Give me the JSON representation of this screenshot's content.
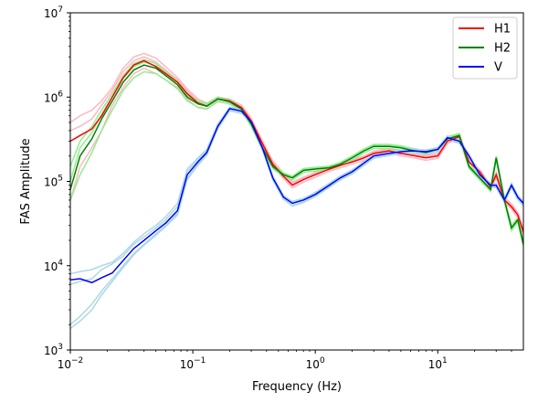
{
  "chart_data": {
    "type": "line",
    "title": "",
    "xlabel": "Frequency (Hz)",
    "ylabel": "FAS Amplitude",
    "xscale": "log",
    "yscale": "log",
    "xlim": [
      0.01,
      50
    ],
    "ylim": [
      1000,
      10000000
    ],
    "x_ticks": [
      0.01,
      0.1,
      1,
      10
    ],
    "x_tick_labels": [
      {
        "base": "10",
        "exp": "−2"
      },
      {
        "base": "10",
        "exp": "−1"
      },
      {
        "base": "10",
        "exp": "0"
      },
      {
        "base": "10",
        "exp": "1"
      }
    ],
    "y_ticks": [
      1000,
      10000,
      100000,
      1000000,
      10000000
    ],
    "y_tick_labels": [
      {
        "base": "10",
        "exp": "3"
      },
      {
        "base": "10",
        "exp": "4"
      },
      {
        "base": "10",
        "exp": "5"
      },
      {
        "base": "10",
        "exp": "6"
      },
      {
        "base": "10",
        "exp": "7"
      }
    ],
    "grid": false,
    "legend_position": "top-right",
    "x": [
      0.01,
      0.012,
      0.015,
      0.018,
      0.022,
      0.027,
      0.033,
      0.04,
      0.05,
      0.06,
      0.075,
      0.09,
      0.11,
      0.13,
      0.16,
      0.2,
      0.25,
      0.3,
      0.37,
      0.45,
      0.55,
      0.65,
      0.8,
      1.0,
      1.3,
      1.6,
      2.0,
      2.5,
      3.0,
      4.0,
      5.0,
      6.0,
      8.0,
      10.0,
      12.0,
      15.0,
      18.0,
      22.0,
      27.0,
      30.0,
      35.0,
      40.0,
      45.0,
      50.0
    ],
    "series": [
      {
        "name": "H1",
        "color": "#ff0000",
        "role": "mean",
        "values": [
          300000,
          350000,
          420000,
          600000,
          1000000,
          1700000,
          2400000,
          2700000,
          2300000,
          1900000,
          1500000,
          1100000,
          850000,
          780000,
          950000,
          900000,
          750000,
          520000,
          280000,
          160000,
          115000,
          90000,
          105000,
          120000,
          140000,
          155000,
          170000,
          190000,
          215000,
          230000,
          215000,
          205000,
          190000,
          200000,
          300000,
          340000,
          170000,
          130000,
          85000,
          120000,
          60000,
          50000,
          40000,
          25000
        ]
      },
      {
        "name": "H2",
        "color": "#008000",
        "role": "mean",
        "values": [
          80000,
          200000,
          320000,
          550000,
          900000,
          1500000,
          2100000,
          2400000,
          2200000,
          1800000,
          1400000,
          1000000,
          830000,
          780000,
          950000,
          880000,
          720000,
          480000,
          250000,
          150000,
          120000,
          110000,
          135000,
          140000,
          145000,
          160000,
          190000,
          230000,
          260000,
          260000,
          250000,
          235000,
          220000,
          240000,
          320000,
          350000,
          150000,
          110000,
          80000,
          190000,
          60000,
          28000,
          35000,
          18000
        ]
      },
      {
        "name": "V",
        "color": "#0000ff",
        "role": "mean",
        "values": [
          6800,
          7000,
          6300,
          7200,
          8200,
          11500,
          16000,
          20000,
          26000,
          32000,
          45000,
          120000,
          170000,
          220000,
          450000,
          730000,
          680000,
          510000,
          250000,
          110000,
          65000,
          55000,
          60000,
          70000,
          90000,
          110000,
          130000,
          165000,
          200000,
          215000,
          225000,
          230000,
          225000,
          240000,
          330000,
          300000,
          200000,
          120000,
          90000,
          90000,
          60000,
          90000,
          65000,
          55000
        ]
      }
    ],
    "spread_series": [
      {
        "parent": "H1",
        "color": "#ffb6c1",
        "values": [
          [
            500000,
            600000,
            700000,
            900000,
            1300000,
            2200000,
            3000000,
            3300000,
            2900000,
            2300000,
            1700000,
            1250000,
            950000,
            850000,
            1000000,
            950000,
            800000,
            560000,
            300000,
            175000,
            125000,
            98000,
            112000,
            128000,
            148000,
            165000,
            180000,
            200000,
            228000,
            245000,
            228000,
            218000,
            202000,
            214000,
            320000,
            360000,
            180000,
            138000,
            90000,
            128000,
            64000,
            54000,
            43000,
            27000
          ],
          [
            60000,
            150000,
            250000,
            400000,
            800000,
            1300000,
            1900000,
            2200000,
            1900000,
            1600000,
            1300000,
            950000,
            750000,
            720000,
            880000,
            840000,
            700000,
            480000,
            260000,
            150000,
            108000,
            84000,
            98000,
            112000,
            132000,
            145000,
            160000,
            178000,
            202000,
            216000,
            202000,
            193000,
            178000,
            188000,
            282000,
            320000,
            160000,
            122000,
            80000,
            112000,
            56000,
            47000,
            37000,
            23000
          ],
          [
            400000,
            450000,
            550000,
            800000,
            1200000,
            2000000,
            2700000,
            3000000,
            2600000,
            2100000,
            1600000,
            1180000,
            900000,
            810000,
            980000,
            930000,
            780000,
            540000,
            290000,
            168000,
            120000,
            94000,
            108000,
            124000,
            144000,
            160000,
            175000,
            196000,
            222000,
            238000,
            222000,
            212000,
            196000,
            206000,
            310000,
            350000,
            175000,
            134000,
            88000,
            124000,
            62000,
            52000,
            42000,
            26000
          ]
        ]
      },
      {
        "parent": "H2",
        "color": "#90ee90",
        "values": [
          [
            150000,
            300000,
            450000,
            700000,
            1100000,
            1800000,
            2500000,
            2800000,
            2500000,
            2000000,
            1550000,
            1100000,
            900000,
            830000,
            1000000,
            930000,
            760000,
            510000,
            265000,
            158000,
            126000,
            115000,
            142000,
            147000,
            152000,
            168000,
            200000,
            242000,
            275000,
            275000,
            264000,
            248000,
            232000,
            253000,
            338000,
            370000,
            158000,
            116000,
            84000,
            200000,
            63000,
            30000,
            37000,
            19000
          ],
          [
            60000,
            120000,
            220000,
            400000,
            700000,
            1200000,
            1700000,
            2000000,
            1900000,
            1600000,
            1250000,
            900000,
            760000,
            730000,
            900000,
            830000,
            680000,
            450000,
            235000,
            142000,
            114000,
            104000,
            128000,
            133000,
            138000,
            152000,
            180000,
            218000,
            246000,
            246000,
            236000,
            222000,
            208000,
            227000,
            302000,
            330000,
            142000,
            104000,
            76000,
            180000,
            57000,
            26000,
            33000,
            17000
          ],
          [
            100000,
            250000,
            380000,
            620000,
            1000000,
            1650000,
            2300000,
            2600000,
            2350000,
            1900000,
            1480000,
            1050000,
            870000,
            810000,
            980000,
            910000,
            745000,
            495000,
            258000,
            155000,
            124000,
            113000,
            139000,
            144000,
            149000,
            165000,
            196000,
            237000,
            268000,
            268000,
            258000,
            242000,
            226000,
            247000,
            330000,
            360000,
            155000,
            113000,
            82000,
            196000,
            62000,
            29000,
            36000,
            18500
          ]
        ]
      },
      {
        "parent": "V",
        "color": "#add8e6",
        "values": [
          [
            8000,
            8500,
            9000,
            10000,
            11000,
            14000,
            19000,
            24000,
            30000,
            38000,
            55000,
            140000,
            190000,
            240000,
            480000,
            760000,
            710000,
            530000,
            262000,
            116000,
            68000,
            58000,
            63000,
            74000,
            95000,
            116000,
            137000,
            173000,
            210000,
            226000,
            236000,
            242000,
            236000,
            252000,
            346000,
            315000,
            210000,
            126000,
            95000,
            95000,
            63000,
            95000,
            68000,
            58000
          ],
          [
            2000,
            2500,
            3500,
            5000,
            7000,
            10000,
            14000,
            18000,
            24000,
            30000,
            42000,
            110000,
            160000,
            210000,
            430000,
            700000,
            650000,
            490000,
            240000,
            105000,
            62000,
            52000,
            57000,
            67000,
            86000,
            105000,
            124000,
            157000,
            190000,
            205000,
            214000,
            219000,
            214000,
            228000,
            314000,
            285000,
            190000,
            114000,
            86000,
            86000,
            57000,
            86000,
            62000,
            52000
          ],
          [
            1800,
            2200,
            3000,
            4500,
            6500,
            9500,
            13500,
            17500,
            23000,
            29000,
            40000,
            105000,
            155000,
            205000,
            420000,
            690000,
            640000,
            485000,
            238000,
            104000,
            61000,
            51000,
            56000,
            66000,
            85000,
            104000,
            123000,
            155000,
            188000,
            203000,
            212000,
            217000,
            212000,
            226000,
            310000,
            282000,
            188000,
            112000,
            85000,
            85000,
            56000,
            85000,
            61000,
            51000
          ],
          [
            6000,
            6500,
            7000,
            9000,
            10500,
            13000,
            18000,
            22000,
            28000,
            35000,
            50000,
            130000,
            180000,
            230000,
            460000,
            740000,
            690000,
            520000,
            255000,
            113000,
            66000,
            56000,
            61000,
            72000,
            92000,
            112000,
            133000,
            168000,
            204000,
            219000,
            230000,
            235000,
            230000,
            245000,
            337000,
            306000,
            204000,
            122000,
            92000,
            92000,
            61000,
            92000,
            66000,
            56000
          ]
        ]
      }
    ]
  }
}
